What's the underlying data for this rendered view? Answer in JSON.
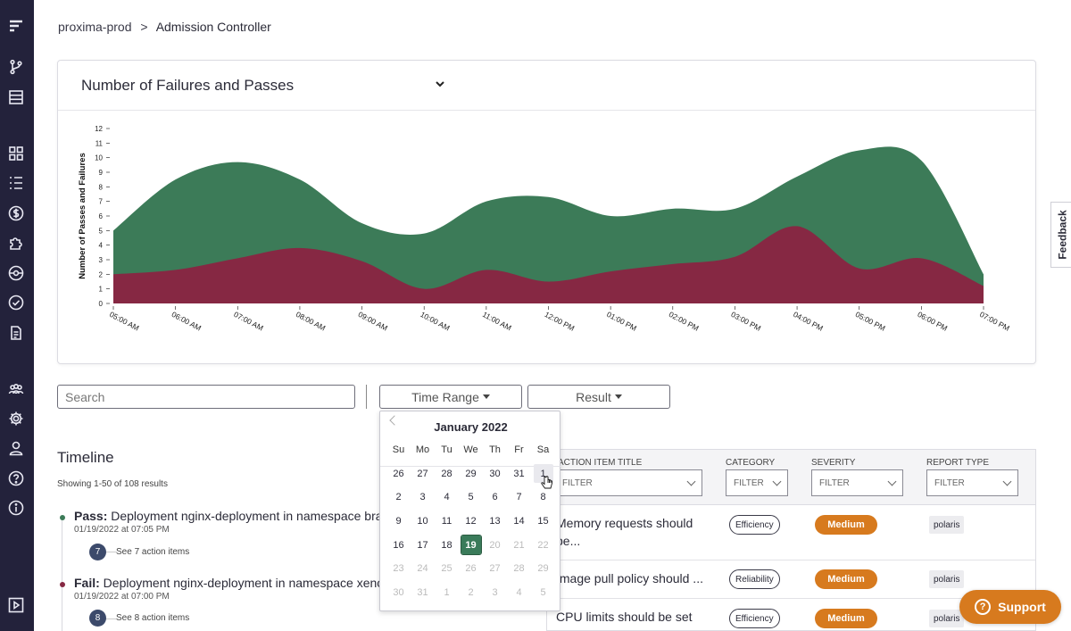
{
  "breadcrumb": {
    "org": "proxima-prod",
    "sep": ">",
    "page": "Admission Controller"
  },
  "chart_card": {
    "title": "Number of Failures and Passes",
    "icon": "chevron-down-icon"
  },
  "chart_data": {
    "type": "area",
    "ylabel": "Number of Passes and Failures",
    "xlabel": "",
    "ylim": [
      0,
      12
    ],
    "stacked": false,
    "x": [
      "05:00 AM",
      "06:00 AM",
      "07:00 AM",
      "08:00 AM",
      "09:00 AM",
      "10:00 AM",
      "11:00 AM",
      "12:00 PM",
      "01:00 PM",
      "02:00 PM",
      "03:00 PM",
      "04:00 PM",
      "05:00 PM",
      "06:00 PM",
      "07:00 PM"
    ],
    "series": [
      {
        "color": "#3c7b58",
        "values": [
          5,
          8.5,
          9.7,
          8.5,
          5.5,
          4.8,
          7,
          7.3,
          6,
          6.5,
          6.5,
          8.7,
          10.5,
          9.8,
          2
        ]
      },
      {
        "color": "#862843",
        "values": [
          2,
          2.3,
          3.1,
          3.8,
          2.9,
          1,
          2.3,
          1.5,
          2.2,
          2.7,
          3.2,
          5.3,
          2.4,
          3.1,
          1.2
        ]
      }
    ]
  },
  "feedback_label": "Feedback",
  "filters": {
    "search_placeholder": "Search",
    "time_range_label": "Time Range",
    "result_label": "Result"
  },
  "timeline": {
    "title": "Timeline",
    "count": "Showing 1-50 of 108 results",
    "items": [
      {
        "status": "Pass:",
        "text": " Deployment nginx-deployment in namespace bravo",
        "date": "01/19/2022 at 07:05 PM",
        "badge": "7",
        "see": "See 7 action items",
        "color": "#3c7b58"
      },
      {
        "status": "Fail:",
        "text": " Deployment nginx-deployment in namespace xeno",
        "date": "01/19/2022 at 07:00 PM",
        "badge": "8",
        "see": "See 8 action items",
        "color": "#862843"
      }
    ]
  },
  "calendar": {
    "month": "January 2022",
    "days_of_week": [
      "Su",
      "Mo",
      "Tu",
      "We",
      "Th",
      "Fr",
      "Sa"
    ],
    "weeks": [
      [
        "26",
        "27",
        "28",
        "29",
        "30",
        "31",
        "1"
      ],
      [
        "2",
        "3",
        "4",
        "5",
        "6",
        "7",
        "8"
      ],
      [
        "9",
        "10",
        "11",
        "12",
        "13",
        "14",
        "15"
      ],
      [
        "16",
        "17",
        "18",
        "19",
        "20",
        "21",
        "22"
      ],
      [
        "23",
        "24",
        "25",
        "26",
        "27",
        "28",
        "29"
      ],
      [
        "30",
        "31",
        "1",
        "2",
        "3",
        "4",
        "5"
      ]
    ],
    "selected": "19"
  },
  "table": {
    "headers": {
      "title": "ACTION ITEM TITLE",
      "category": "CATEGORY",
      "severity": "SEVERITY",
      "report_type": "REPORT TYPE"
    },
    "filter_placeholder": "FILTER",
    "rows": [
      {
        "title": "Memory requests should be...",
        "category": "Efficiency",
        "severity": "Medium",
        "report": "polaris"
      },
      {
        "title": "Image pull policy should ...",
        "category": "Reliability",
        "severity": "Medium",
        "report": "polaris"
      },
      {
        "title": "CPU limits should be set",
        "category": "Efficiency",
        "severity": "Medium",
        "report": "polaris"
      }
    ]
  },
  "support_label": "Support",
  "support_icon_glyph": "?"
}
